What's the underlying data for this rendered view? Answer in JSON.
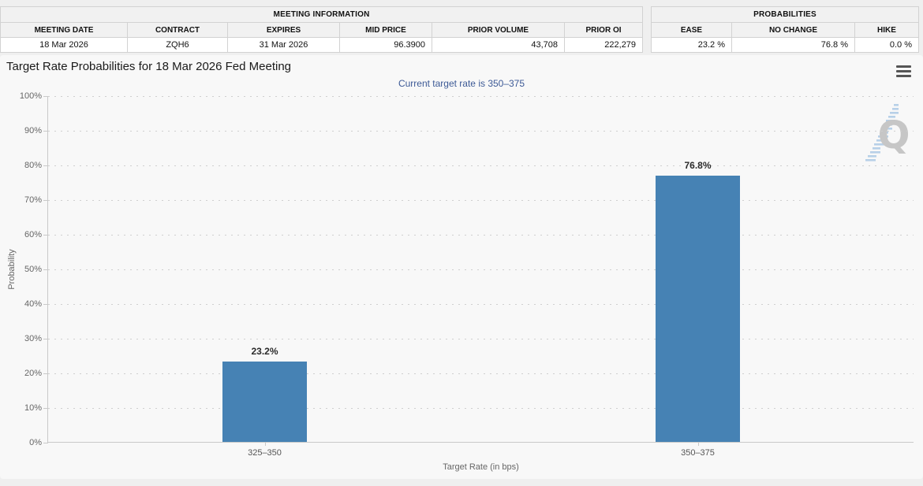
{
  "tables": {
    "meeting": {
      "title": "MEETING INFORMATION",
      "columns": [
        "MEETING DATE",
        "CONTRACT",
        "EXPIRES",
        "MID PRICE",
        "PRIOR VOLUME",
        "PRIOR OI"
      ],
      "values": [
        "18 Mar 2026",
        "ZQH6",
        "31 Mar 2026",
        "96.3900",
        "43,708",
        "222,279"
      ]
    },
    "probabilities": {
      "title": "PROBABILITIES",
      "columns": [
        "EASE",
        "NO CHANGE",
        "HIKE"
      ],
      "values": [
        "23.2 %",
        "76.8 %",
        "0.0 %"
      ]
    }
  },
  "chart_data": {
    "type": "bar",
    "title": "Target Rate Probabilities for 18 Mar 2026 Fed Meeting",
    "subtitle": "Current target rate is 350–375",
    "categories": [
      "325–350",
      "350–375"
    ],
    "values": [
      23.2,
      76.8
    ],
    "bar_labels": [
      "23.2%",
      "76.8%"
    ],
    "xlabel": "Target Rate (in bps)",
    "ylabel": "Probability",
    "ylim": [
      0,
      100
    ],
    "ytick_interval": 10,
    "ytick_suffix": "%",
    "grid": "dotted-horizontal",
    "legend": "none",
    "bar_color": "#4682b4"
  },
  "watermark": {
    "letter": "Q"
  },
  "colors": {
    "bar_blue": "#4682b4",
    "subtitle_blue": "#3d5a96",
    "panel_bg": "#f8f8f8"
  }
}
